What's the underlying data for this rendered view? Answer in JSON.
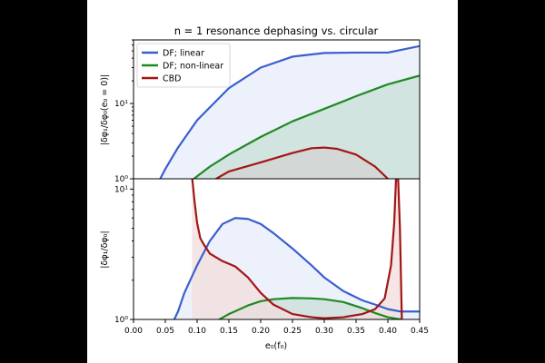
{
  "chart_data": [
    {
      "type": "line",
      "panel": "top",
      "title": "n = 1 resonance dephasing vs. circular",
      "ylabel": "|δφ₁/δφ₀(e₀ = 0)|",
      "yscale": "log",
      "ylim": [
        1,
        70
      ],
      "xlim": [
        0,
        0.45
      ],
      "ytick_labels": [
        "10⁰",
        "10¹"
      ],
      "legend_placement": "upper-left",
      "series": [
        {
          "name": "DF; linear",
          "color": "#3a5fcd",
          "fill": "#e7ecfb",
          "x": [
            0.042,
            0.05,
            0.07,
            0.1,
            0.15,
            0.2,
            0.25,
            0.3,
            0.35,
            0.4,
            0.45
          ],
          "y": [
            1.0,
            1.35,
            2.6,
            6.0,
            16,
            30,
            42,
            47,
            47.5,
            47.5,
            58
          ]
        },
        {
          "name": "DF; non-linear",
          "color": "#1f8a1f",
          "fill": "#c7dfd7",
          "x": [
            0.095,
            0.1,
            0.12,
            0.15,
            0.2,
            0.25,
            0.3,
            0.35,
            0.4,
            0.45
          ],
          "y": [
            1.0,
            1.08,
            1.45,
            2.1,
            3.6,
            5.8,
            8.5,
            12.5,
            18,
            23.5
          ]
        },
        {
          "name": "CBD",
          "color": "#a31515",
          "fill": "#d3d3d3",
          "x": [
            0.13,
            0.15,
            0.2,
            0.25,
            0.28,
            0.3,
            0.32,
            0.35,
            0.38,
            0.4
          ],
          "y": [
            1.0,
            1.25,
            1.65,
            2.2,
            2.55,
            2.6,
            2.5,
            2.1,
            1.45,
            1.0
          ]
        }
      ]
    },
    {
      "type": "line",
      "panel": "bottom",
      "ylabel": "|δφ₁/δφ₀|",
      "xlabel": "e₀(f₀)",
      "yscale": "log",
      "ylim": [
        1,
        12
      ],
      "xlim": [
        0,
        0.45
      ],
      "x_ticks": [
        0,
        0.05,
        0.1,
        0.15,
        0.2,
        0.25,
        0.3,
        0.35,
        0.4,
        0.45
      ],
      "x_tick_labels": [
        "0.00",
        "0.05",
        "0.10",
        "0.15",
        "0.20",
        "0.25",
        "0.30",
        "0.35",
        "0.40",
        "0.45"
      ],
      "ytick_labels": [
        "10⁰",
        "10¹"
      ],
      "series": [
        {
          "name": "DF; linear",
          "color": "#3a5fcd",
          "fill": "#e7ecfb",
          "x": [
            0.064,
            0.07,
            0.08,
            0.1,
            0.12,
            0.14,
            0.16,
            0.18,
            0.2,
            0.22,
            0.25,
            0.28,
            0.3,
            0.33,
            0.36,
            0.38,
            0.4,
            0.42,
            0.44,
            0.45
          ],
          "y": [
            1.0,
            1.15,
            1.6,
            2.6,
            4.0,
            5.4,
            6.0,
            5.9,
            5.4,
            4.6,
            3.5,
            2.6,
            2.1,
            1.65,
            1.4,
            1.3,
            1.2,
            1.15,
            1.15,
            1.15
          ]
        },
        {
          "name": "DF; non-linear",
          "color": "#1f8a1f",
          "fill": "#c9ded8",
          "x": [
            0.135,
            0.15,
            0.18,
            0.2,
            0.22,
            0.25,
            0.28,
            0.3,
            0.33,
            0.36,
            0.38,
            0.4,
            0.42
          ],
          "y": [
            1.0,
            1.1,
            1.28,
            1.38,
            1.43,
            1.46,
            1.45,
            1.43,
            1.36,
            1.22,
            1.12,
            1.04,
            1.0
          ]
        },
        {
          "name": "CBD",
          "color": "#a31515",
          "fill": "#f2dedc",
          "x": [
            0.092,
            0.096,
            0.1,
            0.105,
            0.11,
            0.12,
            0.14,
            0.16,
            0.18,
            0.2,
            0.22,
            0.25,
            0.28,
            0.3,
            0.33,
            0.36,
            0.38,
            0.395,
            0.405,
            0.41,
            0.413,
            0.416,
            0.419,
            0.422
          ],
          "y": [
            12.5,
            8.0,
            5.5,
            4.2,
            3.8,
            3.2,
            2.8,
            2.55,
            2.1,
            1.6,
            1.3,
            1.1,
            1.04,
            1.02,
            1.04,
            1.1,
            1.2,
            1.45,
            2.6,
            5.5,
            12.5,
            12.5,
            5.0,
            1.0
          ]
        }
      ]
    }
  ]
}
